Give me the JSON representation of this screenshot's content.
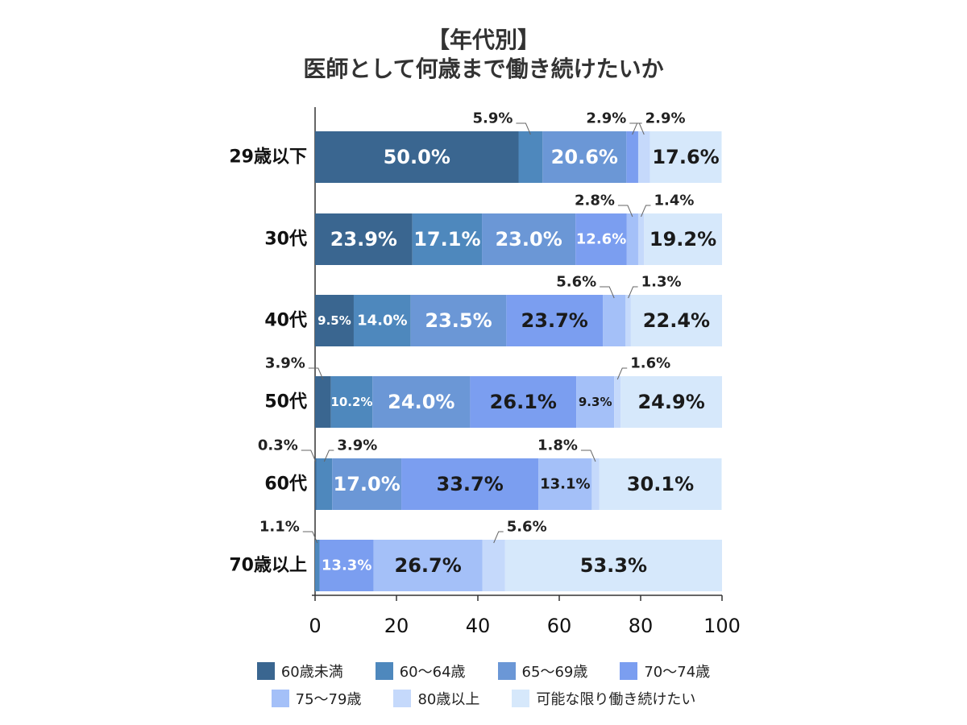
{
  "title_line1": "【年代別】",
  "title_line2": "医師として何歳まで働き続けたいか",
  "chart_data": {
    "type": "bar",
    "orientation": "horizontal",
    "stacked": true,
    "categories": [
      "29歳以下",
      "30代",
      "40代",
      "50代",
      "60代",
      "70歳以上"
    ],
    "series": [
      {
        "name": "60歳未満",
        "color": "#3a6690",
        "values": [
          50.0,
          23.9,
          9.5,
          3.9,
          0.3,
          0
        ]
      },
      {
        "name": "60～64歳",
        "color": "#4e88bd",
        "values": [
          5.9,
          17.1,
          14.0,
          10.2,
          3.9,
          1.1
        ]
      },
      {
        "name": "65～69歳",
        "color": "#6b97d6",
        "values": [
          20.6,
          23.0,
          23.5,
          24.0,
          17.0,
          0
        ]
      },
      {
        "name": "70～74歳",
        "color": "#7b9ef0",
        "values": [
          2.9,
          12.6,
          23.7,
          26.1,
          33.7,
          13.3
        ]
      },
      {
        "name": "75～79歳",
        "color": "#a4c0f8",
        "values": [
          0,
          2.8,
          5.6,
          9.3,
          13.1,
          26.7
        ]
      },
      {
        "name": "80歳以上",
        "color": "#c5d9fb",
        "values": [
          2.9,
          1.4,
          1.3,
          1.6,
          1.8,
          5.6
        ]
      },
      {
        "name": "可能な限り働き続けたい",
        "color": "#d6e8fb",
        "values": [
          17.6,
          19.2,
          22.4,
          24.9,
          30.1,
          53.3
        ]
      }
    ],
    "data_labels": [
      [
        "50.0%",
        "5.9%",
        "20.6%",
        "2.9%",
        null,
        "2.9%",
        "17.6%"
      ],
      [
        "23.9%",
        "17.1%",
        "23.0%",
        "12.6%",
        "2.8%",
        "1.4%",
        "19.2%"
      ],
      [
        "9.5%",
        "14.0%",
        "23.5%",
        "23.7%",
        "5.6%",
        "1.3%",
        "22.4%"
      ],
      [
        "3.9%",
        "10.2%",
        "24.0%",
        "26.1%",
        "9.3%",
        "1.6%",
        "24.9%"
      ],
      [
        "0.3%",
        "3.9%",
        "17.0%",
        "33.7%",
        "13.1%",
        "1.8%",
        "30.1%"
      ],
      [
        null,
        "1.1%",
        null,
        "13.3%",
        "26.7%",
        "5.6%",
        "53.3%"
      ]
    ],
    "xlim": [
      0,
      100
    ],
    "xticks": [
      "0",
      "20",
      "40",
      "60",
      "80",
      "100"
    ],
    "legend_position": "bottom"
  }
}
